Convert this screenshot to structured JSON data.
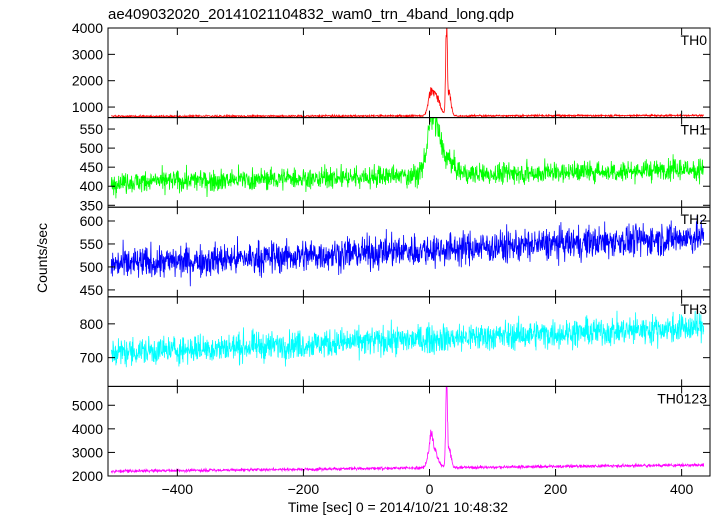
{
  "chart_data": {
    "type": "line",
    "title": "ae409032020_20141021104832_wam0_trn_4band_long.qdp",
    "ylabel": "Counts/sec",
    "xlabel": "Time [sec] 0 = 2014/10/21 10:48:32",
    "xlim": [
      -510,
      445
    ],
    "xticks": [
      -400,
      -200,
      0,
      200,
      400
    ],
    "x_start": -505,
    "x_end": 435,
    "gap_around": 0,
    "panels": [
      {
        "name": "TH0",
        "color": "#ff0000",
        "ylim": [
          600,
          4000
        ],
        "yticks": [
          1000,
          2000,
          3000,
          4000
        ],
        "show_top_tick": true,
        "baseline_start": 650,
        "baseline_end": 680,
        "noise": 25,
        "features": [
          {
            "x": 2,
            "amp": 650,
            "width": 4
          },
          {
            "x": 8,
            "amp": 500,
            "width": 6
          },
          {
            "x": 14,
            "amp": 300,
            "width": 5
          },
          {
            "x": 27,
            "amp": 3350,
            "width": 1.2
          },
          {
            "x": 31,
            "amp": 900,
            "width": 3
          }
        ]
      },
      {
        "name": "TH1",
        "color": "#00ff00",
        "ylim": [
          345,
          580
        ],
        "yticks": [
          350,
          400,
          450,
          500,
          550
        ],
        "show_top_tick": false,
        "baseline_start": 410,
        "baseline_end": 445,
        "noise": 20,
        "features": [
          {
            "x": 5,
            "amp": 130,
            "width": 8
          },
          {
            "x": 20,
            "amp": 50,
            "width": 15
          }
        ]
      },
      {
        "name": "TH2",
        "color": "#0000ff",
        "ylim": [
          435,
          630
        ],
        "yticks": [
          450,
          500,
          550,
          600
        ],
        "show_top_tick": false,
        "baseline_start": 505,
        "baseline_end": 565,
        "noise": 25,
        "features": []
      },
      {
        "name": "TH3",
        "color": "#00ffff",
        "ylim": [
          615,
          880
        ],
        "yticks": [
          700,
          800
        ],
        "show_top_tick": false,
        "baseline_start": 715,
        "baseline_end": 790,
        "noise": 30,
        "features": []
      },
      {
        "name": "TH0123",
        "color": "#ff00ff",
        "ylim": [
          2000,
          5800
        ],
        "yticks": [
          2000,
          3000,
          4000,
          5000
        ],
        "show_top_tick": false,
        "baseline_start": 2200,
        "baseline_end": 2470,
        "noise": 45,
        "features": [
          {
            "x": 2,
            "amp": 950,
            "width": 4
          },
          {
            "x": 8,
            "amp": 600,
            "width": 6
          },
          {
            "x": 27,
            "amp": 3500,
            "width": 1.2
          },
          {
            "x": 31,
            "amp": 900,
            "width": 3
          }
        ]
      }
    ],
    "legend": "none",
    "grid": false
  }
}
